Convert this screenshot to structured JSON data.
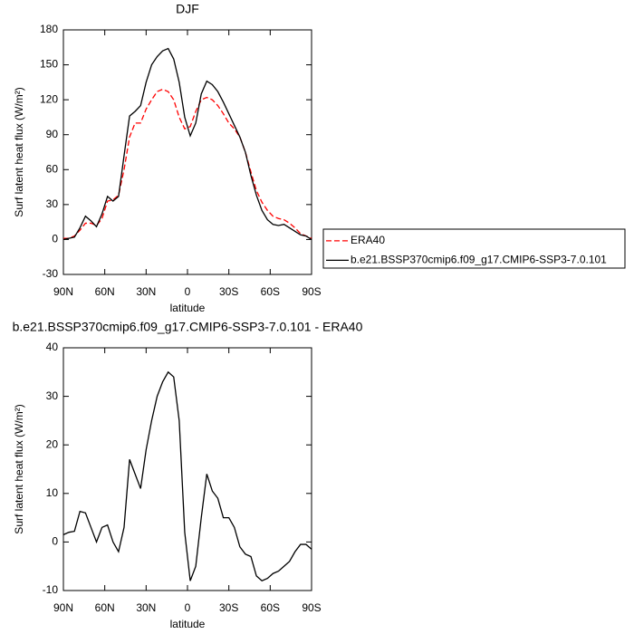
{
  "chart_data": [
    {
      "type": "line",
      "title": "DJF",
      "xlabel": "latitude",
      "ylabel": "Surf latent heat flux (W/m²)",
      "x": [
        90,
        86,
        82,
        78,
        74,
        70,
        66,
        62,
        58,
        54,
        50,
        46,
        42,
        38,
        34,
        30,
        26,
        22,
        18,
        14,
        10,
        6,
        2,
        -2,
        -6,
        -10,
        -14,
        -18,
        -22,
        -26,
        -30,
        -34,
        -38,
        -42,
        -46,
        -50,
        -54,
        -58,
        -62,
        -66,
        -70,
        -74,
        -78,
        -82,
        -86,
        -90
      ],
      "series": [
        {
          "name": "ERA40",
          "color": "#ff0000",
          "linestyle": "dashed",
          "values": [
            1,
            1,
            3,
            8,
            14,
            14,
            12,
            18,
            33,
            34,
            38,
            60,
            88,
            100,
            100,
            112,
            120,
            127,
            129,
            127,
            120,
            105,
            95,
            97,
            110,
            120,
            122,
            120,
            115,
            108,
            100,
            95,
            88,
            75,
            58,
            42,
            32,
            25,
            20,
            18,
            17,
            14,
            10,
            5,
            3,
            1
          ]
        },
        {
          "name": "b.e21.BSSP370cmip6.f09_g17.CMIP6-SSP3-7.0.101",
          "color": "#000000",
          "linestyle": "solid",
          "values": [
            0,
            1,
            2,
            10,
            20,
            16,
            11,
            22,
            37,
            33,
            37,
            72,
            106,
            110,
            115,
            135,
            150,
            157,
            162,
            164,
            155,
            135,
            105,
            89,
            100,
            125,
            136,
            133,
            127,
            118,
            108,
            98,
            88,
            75,
            55,
            38,
            25,
            17,
            13,
            12,
            13,
            10,
            7,
            4,
            3,
            0
          ]
        }
      ],
      "xlim": [
        90,
        -90
      ],
      "xticks": [
        {
          "value": 90,
          "label": "90N"
        },
        {
          "value": 60,
          "label": "60N"
        },
        {
          "value": 30,
          "label": "30N"
        },
        0,
        {
          "value": -30,
          "label": "30S"
        },
        {
          "value": -60,
          "label": "60S"
        },
        {
          "value": -90,
          "label": "90S"
        }
      ],
      "ylim": [
        -30,
        180
      ],
      "yticks": [
        -30,
        0,
        30,
        60,
        90,
        120,
        150,
        180
      ],
      "legend": "right"
    },
    {
      "type": "line",
      "title": "b.e21.BSSP370cmip6.f09_g17.CMIP6-SSP3-7.0.101 - ERA40",
      "xlabel": "latitude",
      "ylabel": "Surf latent heat flux (W/m²)",
      "x": [
        90,
        86,
        82,
        78,
        74,
        70,
        66,
        62,
        58,
        54,
        50,
        46,
        42,
        38,
        34,
        30,
        26,
        22,
        18,
        14,
        10,
        6,
        2,
        -2,
        -6,
        -10,
        -14,
        -18,
        -22,
        -26,
        -30,
        -34,
        -38,
        -42,
        -46,
        -50,
        -54,
        -58,
        -62,
        -66,
        -70,
        -74,
        -78,
        -82,
        -86,
        -90
      ],
      "series": [
        {
          "color": "#000000",
          "linestyle": "solid",
          "values": [
            1.5,
            2,
            2.2,
            6.3,
            6,
            3,
            0,
            3,
            3.5,
            0,
            -2,
            3,
            17,
            14,
            11,
            19,
            25,
            30,
            33,
            35,
            34,
            25,
            2,
            -8,
            -5,
            5,
            14,
            10.5,
            9,
            5,
            5,
            3,
            -1,
            -2.5,
            -3,
            -7,
            -8,
            -7.5,
            -6.5,
            -6,
            -5,
            -4,
            -2,
            -0.5,
            -0.5,
            -1.5
          ]
        }
      ],
      "xlim": [
        90,
        -90
      ],
      "xticks": [
        {
          "value": 90,
          "label": "90N"
        },
        {
          "value": 60,
          "label": "60N"
        },
        {
          "value": 30,
          "label": "30N"
        },
        0,
        {
          "value": -30,
          "label": "30S"
        },
        {
          "value": -60,
          "label": "60S"
        },
        {
          "value": -90,
          "label": "90S"
        }
      ],
      "ylim": [
        -10,
        40
      ],
      "yticks": [
        -10,
        0,
        10,
        20,
        30,
        40
      ]
    }
  ]
}
